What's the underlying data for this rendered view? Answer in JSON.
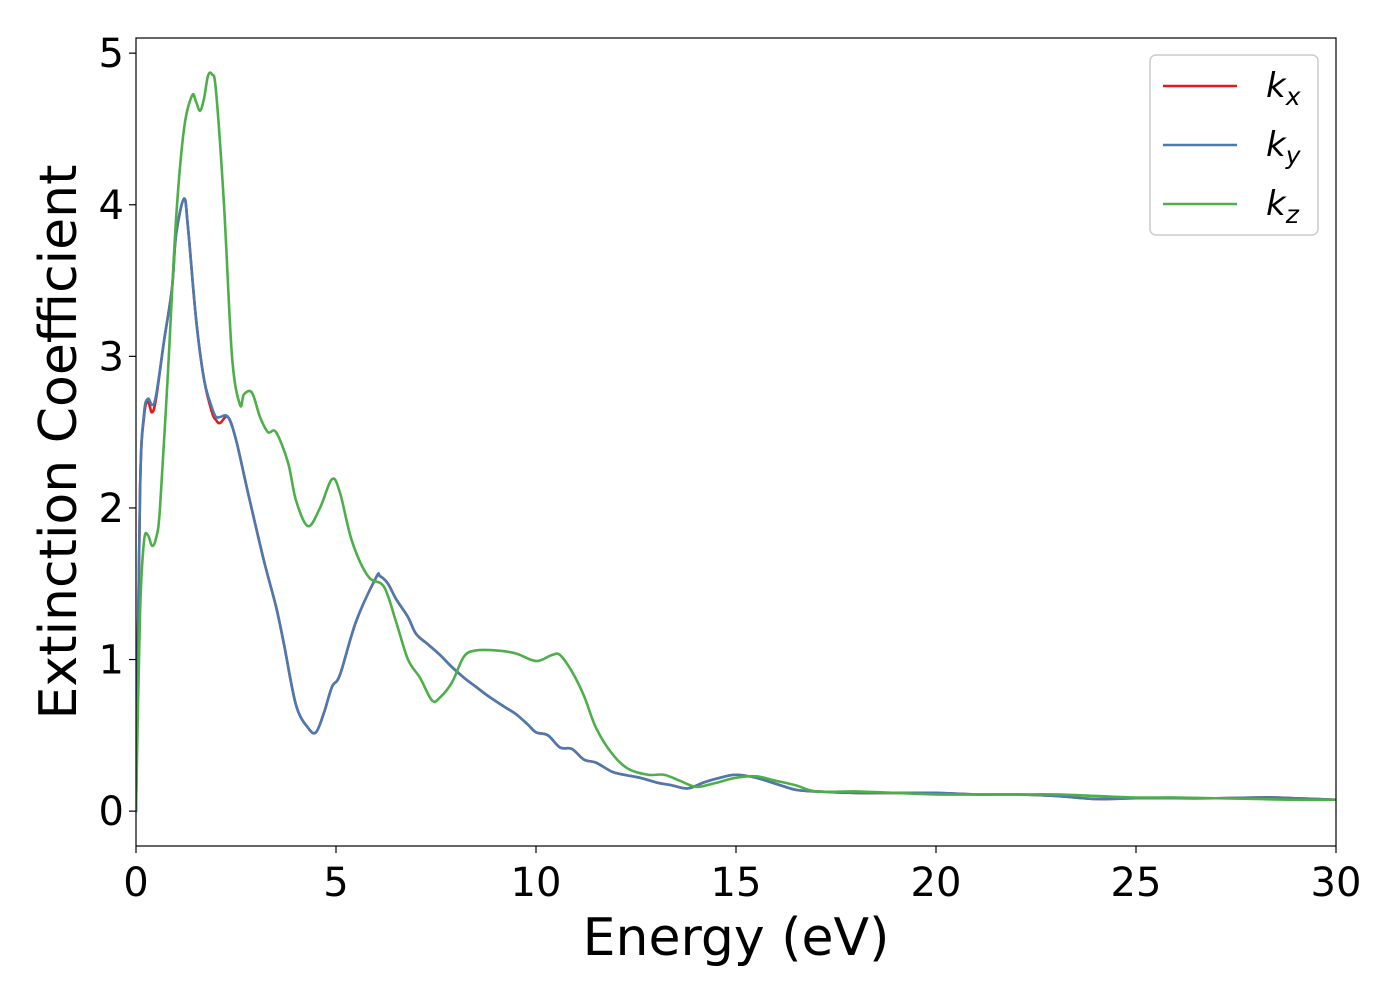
{
  "chart_data": {
    "type": "line",
    "title": "",
    "xlabel": "Energy (eV)",
    "ylabel": "Extinction Coefficient",
    "xlim": [
      0,
      30
    ],
    "ylim": [
      -0.23,
      5.1
    ],
    "xticks": [
      0,
      5,
      10,
      15,
      20,
      25,
      30
    ],
    "yticks": [
      0,
      1,
      2,
      3,
      4,
      5
    ],
    "grid": false,
    "legend_position": "top-right",
    "series": [
      {
        "name": "k_x",
        "label_base": "k",
        "label_sub": "x",
        "color": "#e41a1c",
        "x": [
          0,
          0.1,
          0.2,
          0.3,
          0.4,
          0.5,
          0.7,
          0.9,
          1.0,
          1.2,
          1.3,
          1.5,
          1.7,
          1.9,
          2.0,
          2.1,
          2.3,
          2.5,
          2.8,
          3.2,
          3.5,
          3.7,
          4.0,
          4.3,
          4.5,
          4.7,
          4.9,
          5.1,
          5.5,
          6.0,
          6.1,
          6.3,
          6.5,
          6.8,
          7.0,
          7.3,
          7.6,
          7.9,
          8.2,
          8.5,
          8.8,
          9.2,
          9.5,
          9.8,
          10.0,
          10.3,
          10.6,
          10.9,
          11.2,
          11.5,
          11.9,
          12.2,
          12.6,
          13.0,
          13.4,
          13.8,
          14.2,
          14.6,
          15.0,
          15.5,
          16.0,
          16.5,
          17.0,
          18.0,
          19.0,
          20.0,
          21.0,
          22.0,
          23.0,
          24.0,
          25.0,
          26.0,
          27.0,
          28.0,
          28.5,
          29.0,
          30.0
        ],
        "y": [
          0.0,
          2.1,
          2.6,
          2.7,
          2.63,
          2.72,
          3.1,
          3.45,
          3.8,
          4.04,
          3.85,
          3.25,
          2.85,
          2.63,
          2.58,
          2.56,
          2.6,
          2.45,
          2.1,
          1.65,
          1.35,
          1.1,
          0.7,
          0.55,
          0.52,
          0.65,
          0.82,
          0.9,
          1.25,
          1.54,
          1.55,
          1.5,
          1.4,
          1.28,
          1.17,
          1.1,
          1.03,
          0.95,
          0.88,
          0.82,
          0.76,
          0.69,
          0.64,
          0.57,
          0.52,
          0.5,
          0.42,
          0.41,
          0.34,
          0.32,
          0.26,
          0.24,
          0.22,
          0.19,
          0.17,
          0.15,
          0.19,
          0.22,
          0.24,
          0.22,
          0.18,
          0.14,
          0.13,
          0.12,
          0.12,
          0.12,
          0.11,
          0.11,
          0.1,
          0.08,
          0.085,
          0.085,
          0.085,
          0.09,
          0.09,
          0.085,
          0.075
        ]
      },
      {
        "name": "k_y",
        "label_base": "k",
        "label_sub": "y",
        "color": "#4a7ab0",
        "x": [
          0,
          0.1,
          0.2,
          0.3,
          0.4,
          0.5,
          0.7,
          0.9,
          1.0,
          1.2,
          1.3,
          1.5,
          1.7,
          1.9,
          2.0,
          2.1,
          2.3,
          2.5,
          2.8,
          3.2,
          3.5,
          3.7,
          4.0,
          4.3,
          4.5,
          4.7,
          4.9,
          5.1,
          5.5,
          6.0,
          6.1,
          6.3,
          6.5,
          6.8,
          7.0,
          7.3,
          7.6,
          7.9,
          8.2,
          8.5,
          8.8,
          9.2,
          9.5,
          9.8,
          10.0,
          10.3,
          10.6,
          10.9,
          11.2,
          11.5,
          11.9,
          12.2,
          12.6,
          13.0,
          13.4,
          13.8,
          14.2,
          14.6,
          15.0,
          15.5,
          16.0,
          16.5,
          17.0,
          18.0,
          19.0,
          20.0,
          21.0,
          22.0,
          23.0,
          24.0,
          25.0,
          26.0,
          27.0,
          28.0,
          28.5,
          29.0,
          30.0
        ],
        "y": [
          0.0,
          2.1,
          2.62,
          2.72,
          2.68,
          2.74,
          3.1,
          3.45,
          3.8,
          4.04,
          3.85,
          3.25,
          2.85,
          2.66,
          2.6,
          2.6,
          2.6,
          2.45,
          2.1,
          1.65,
          1.35,
          1.1,
          0.7,
          0.55,
          0.52,
          0.65,
          0.82,
          0.9,
          1.25,
          1.54,
          1.55,
          1.5,
          1.4,
          1.28,
          1.17,
          1.1,
          1.03,
          0.95,
          0.88,
          0.82,
          0.76,
          0.69,
          0.64,
          0.57,
          0.52,
          0.5,
          0.42,
          0.41,
          0.34,
          0.32,
          0.26,
          0.24,
          0.22,
          0.19,
          0.17,
          0.15,
          0.19,
          0.22,
          0.24,
          0.22,
          0.18,
          0.14,
          0.13,
          0.12,
          0.12,
          0.12,
          0.11,
          0.11,
          0.1,
          0.08,
          0.085,
          0.085,
          0.085,
          0.09,
          0.09,
          0.085,
          0.075
        ]
      },
      {
        "name": "k_z",
        "label_base": "k",
        "label_sub": "z",
        "color": "#4daf4a",
        "x": [
          0,
          0.1,
          0.2,
          0.3,
          0.4,
          0.5,
          0.6,
          0.8,
          1.0,
          1.2,
          1.4,
          1.5,
          1.6,
          1.7,
          1.8,
          1.9,
          2.0,
          2.2,
          2.4,
          2.6,
          2.7,
          2.9,
          3.1,
          3.3,
          3.5,
          3.8,
          4.0,
          4.3,
          4.6,
          4.9,
          5.1,
          5.4,
          5.8,
          6.2,
          6.5,
          6.8,
          7.1,
          7.4,
          7.6,
          7.9,
          8.2,
          8.5,
          9.0,
          9.5,
          10.0,
          10.4,
          10.6,
          10.9,
          11.2,
          11.5,
          11.9,
          12.3,
          12.8,
          13.2,
          13.6,
          14.0,
          14.4,
          15.0,
          15.5,
          16.0,
          16.5,
          17.0,
          18.0,
          19.0,
          20.0,
          21.0,
          22.0,
          23.0,
          24.0,
          25.0,
          26.0,
          27.0,
          28.0,
          29.0,
          30.0
        ],
        "y": [
          0.0,
          1.3,
          1.78,
          1.82,
          1.75,
          1.8,
          2.0,
          2.9,
          3.9,
          4.5,
          4.72,
          4.68,
          4.62,
          4.7,
          4.85,
          4.86,
          4.75,
          4.0,
          3.0,
          2.68,
          2.75,
          2.76,
          2.6,
          2.5,
          2.5,
          2.3,
          2.05,
          1.88,
          2.0,
          2.19,
          2.1,
          1.78,
          1.55,
          1.48,
          1.25,
          1.0,
          0.88,
          0.73,
          0.75,
          0.85,
          1.02,
          1.06,
          1.06,
          1.04,
          0.99,
          1.03,
          1.03,
          0.92,
          0.76,
          0.55,
          0.38,
          0.28,
          0.24,
          0.24,
          0.2,
          0.16,
          0.18,
          0.22,
          0.23,
          0.2,
          0.17,
          0.13,
          0.13,
          0.12,
          0.11,
          0.11,
          0.11,
          0.11,
          0.1,
          0.09,
          0.09,
          0.085,
          0.08,
          0.075,
          0.075
        ]
      }
    ]
  }
}
